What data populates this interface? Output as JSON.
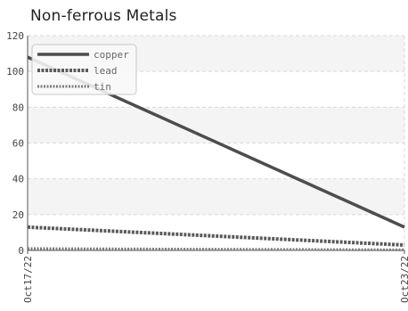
{
  "chart_data": {
    "type": "line",
    "title": "Non-ferrous Metals",
    "x": [
      "Oct17/22",
      "Oct23/22"
    ],
    "ylim": [
      0,
      120
    ],
    "yticks": [
      0,
      20,
      40,
      60,
      80,
      100,
      120
    ],
    "grid": true,
    "legend_position": "top-left",
    "series": [
      {
        "name": "copper",
        "values": [
          108,
          13
        ],
        "color": "#4d4d4d",
        "style": "solid"
      },
      {
        "name": "lead",
        "values": [
          13,
          3
        ],
        "color": "#5a5a5a",
        "style": "dashed"
      },
      {
        "name": "tin",
        "values": [
          1,
          0.3
        ],
        "color": "#7a7a7a",
        "style": "dashed"
      }
    ]
  }
}
